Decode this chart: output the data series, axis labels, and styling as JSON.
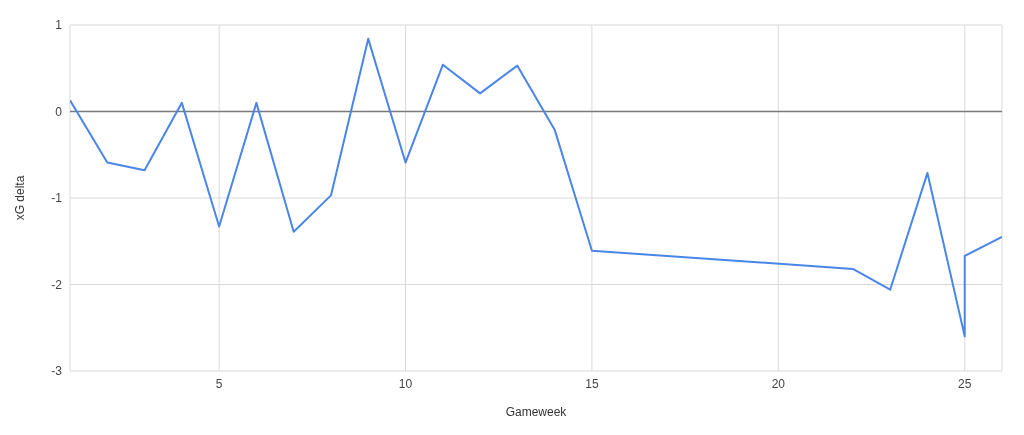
{
  "chart_data": {
    "type": "line",
    "xlabel": "Gameweek",
    "ylabel": "xG delta",
    "x": [
      1,
      2,
      3,
      4,
      5,
      6,
      7,
      8,
      9,
      10,
      11,
      12,
      13,
      14,
      15,
      22,
      23,
      24,
      25,
      25,
      26
    ],
    "series": [
      {
        "color": "#4a86e8",
        "values": [
          0.13,
          -0.59,
          -0.68,
          0.1,
          -1.33,
          0.1,
          -1.39,
          -0.97,
          0.84,
          -0.59,
          0.54,
          0.21,
          0.53,
          -0.21,
          -1.61,
          -1.82,
          -2.06,
          -0.71,
          -2.6,
          -1.67,
          -1.45
        ]
      }
    ],
    "xlim": [
      1,
      26
    ],
    "xticks": [
      5,
      10,
      15,
      20,
      25
    ],
    "ylim": [
      -3,
      1
    ],
    "yticks": [
      -3,
      -2,
      -1,
      0,
      1
    ],
    "ref_lines": [
      {
        "axis": "y",
        "value": 0,
        "color": "#7a7a7a"
      }
    ],
    "grid": true,
    "legend": false,
    "marker": "none",
    "line_style": "solid"
  }
}
